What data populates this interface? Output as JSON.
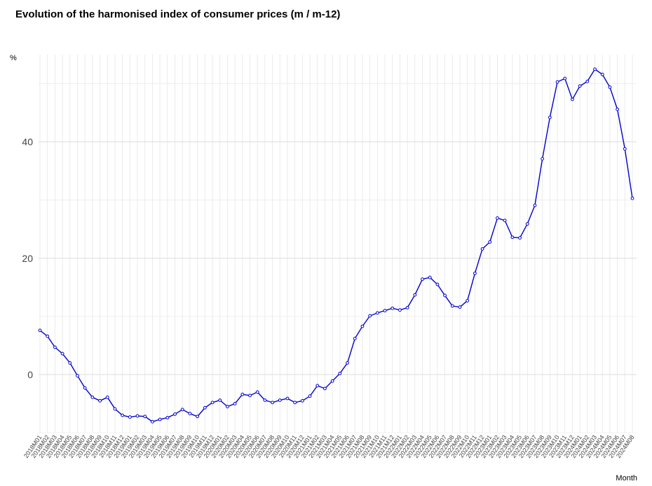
{
  "chart_data": {
    "type": "line",
    "title": "Evolution of the harmonised index of consumer prices (m / m-12)",
    "xlabel": "Month",
    "ylabel": "%",
    "ylim": [
      -10,
      55
    ],
    "yticks": [
      0,
      20,
      40
    ],
    "grid": true,
    "legend": "none",
    "line_color": "#0000cc",
    "x": [
      "2018M01",
      "2018M02",
      "2018M03",
      "2018M04",
      "2018M05",
      "2018M06",
      "2018M07",
      "2018M08",
      "2018M09",
      "2018M10",
      "2018M11",
      "2018M12",
      "2019M01",
      "2019M02",
      "2019M03",
      "2019M04",
      "2019M05",
      "2019M06",
      "2019M07",
      "2019M08",
      "2019M09",
      "2019M10",
      "2019M11",
      "2019M12",
      "2020M01",
      "2020M02",
      "2020M03",
      "2020M04",
      "2020M05",
      "2020M06",
      "2020M07",
      "2020M08",
      "2020M09",
      "2020M10",
      "2020M11",
      "2020M12",
      "2021M01",
      "2021M02",
      "2021M03",
      "2021M04",
      "2021M05",
      "2021M06",
      "2021M07",
      "2021M08",
      "2021M09",
      "2021M10",
      "2021M11",
      "2021M12",
      "2022M01",
      "2022M02",
      "2022M03",
      "2022M04",
      "2022M05",
      "2022M06",
      "2022M07",
      "2022M08",
      "2022M09",
      "2022M10",
      "2022M11",
      "2022M12",
      "2023M01",
      "2023M02",
      "2023M03",
      "2023M04",
      "2023M05",
      "2023M06",
      "2023M07",
      "2023M08",
      "2023M09",
      "2023M10",
      "2023M11",
      "2023M12",
      "2024M01",
      "2024M02",
      "2024M03",
      "2024M04",
      "2024M05",
      "2024M06",
      "2024M07",
      "2024M08"
    ],
    "series": [
      {
        "values": [
          7.6,
          6.6,
          4.7,
          3.6,
          2.0,
          -0.2,
          -2.3,
          -3.9,
          -4.5,
          -3.9,
          -5.9,
          -7.0,
          -7.3,
          -7.1,
          -7.2,
          -8.1,
          -7.7,
          -7.4,
          -6.8,
          -6.0,
          -6.7,
          -7.2,
          -5.7,
          -4.8,
          -4.4,
          -5.5,
          -5.0,
          -3.4,
          -3.6,
          -3.0,
          -4.4,
          -4.8,
          -4.4,
          -4.1,
          -4.8,
          -4.5,
          -3.7,
          -1.9,
          -2.4,
          -1.1,
          0.2,
          2.0,
          6.2,
          8.3,
          10.1,
          10.6,
          11.0,
          11.4,
          11.1,
          11.5,
          13.7,
          16.4,
          16.7,
          15.5,
          13.6,
          11.8,
          11.6,
          12.7,
          17.4,
          21.6,
          22.8,
          26.9,
          26.5,
          23.6,
          23.5,
          25.9,
          29.1,
          37.1,
          44.2,
          50.3,
          50.9,
          47.3,
          49.6,
          50.4,
          52.5,
          51.6,
          49.4,
          45.6,
          38.8,
          30.3
        ]
      }
    ]
  }
}
